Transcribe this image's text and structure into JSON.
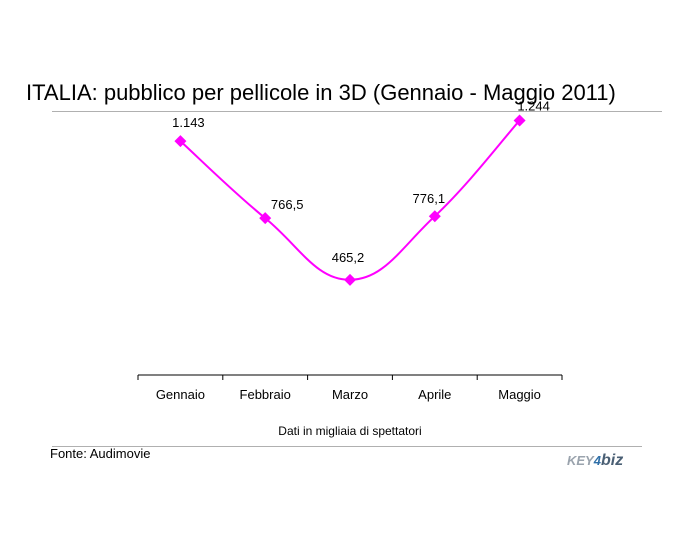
{
  "chart_data": {
    "type": "line",
    "title": "ITALIA: pubblico per pellicole in 3D (Gennaio - Maggio 2011)",
    "subtitle": "Dati in migliaia di spettatori",
    "categories": [
      "Gennaio",
      "Febbraio",
      "Marzo",
      "Aprile",
      "Maggio"
    ],
    "values": [
      1143,
      766.5,
      465.2,
      776.1,
      1244
    ],
    "value_labels": [
      "1.143",
      "766,5",
      "465,2",
      "776,1",
      "1.244"
    ],
    "ylim": [
      0,
      1300
    ],
    "grid": false,
    "legend": "none",
    "series_color": "#ff00ff"
  },
  "footer": {
    "source": "Fonte: Audimovie",
    "logo_part1": "KEY",
    "logo_part2": "4",
    "logo_part3": "biz"
  }
}
